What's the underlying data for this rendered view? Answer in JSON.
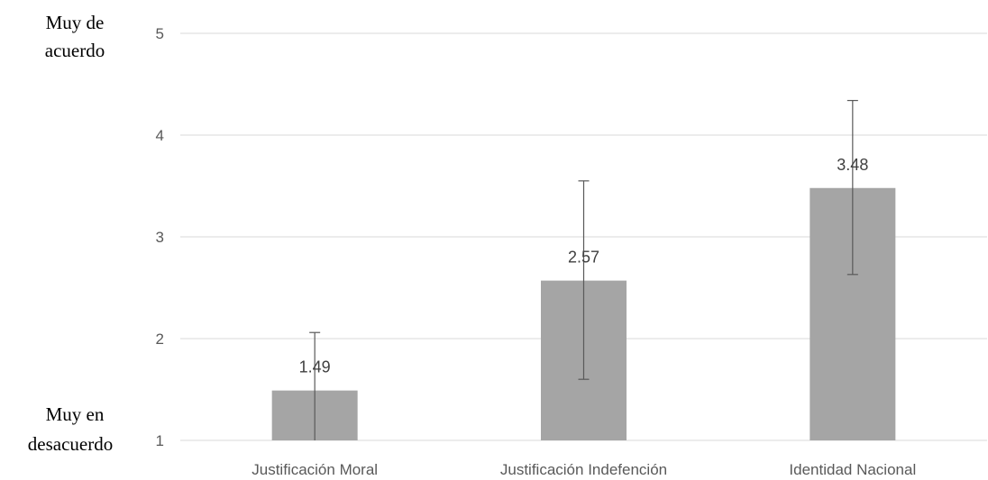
{
  "chart_data": {
    "type": "bar",
    "categories": [
      "Justificación Moral",
      "Justificación Indefención",
      "Identidad Nacional"
    ],
    "values": [
      1.49,
      2.57,
      3.48
    ],
    "data_labels": [
      "1.49",
      "2.57",
      "3.48"
    ],
    "error_bars": [
      {
        "low": 1.0,
        "high": 2.06
      },
      {
        "low": 1.6,
        "high": 3.55
      },
      {
        "low": 2.63,
        "high": 4.34
      }
    ],
    "yticks": [
      "1",
      "2",
      "3",
      "4",
      "5"
    ],
    "ylim": [
      1,
      5
    ],
    "y_anchor_labels": {
      "top": [
        "Muy de",
        "acuerdo"
      ],
      "bottom": [
        "Muy en",
        "desacuerdo"
      ]
    },
    "grid": true,
    "bar_color": "#a5a5a5",
    "grid_color": "#d9d9d9",
    "error_color": "#595959"
  }
}
